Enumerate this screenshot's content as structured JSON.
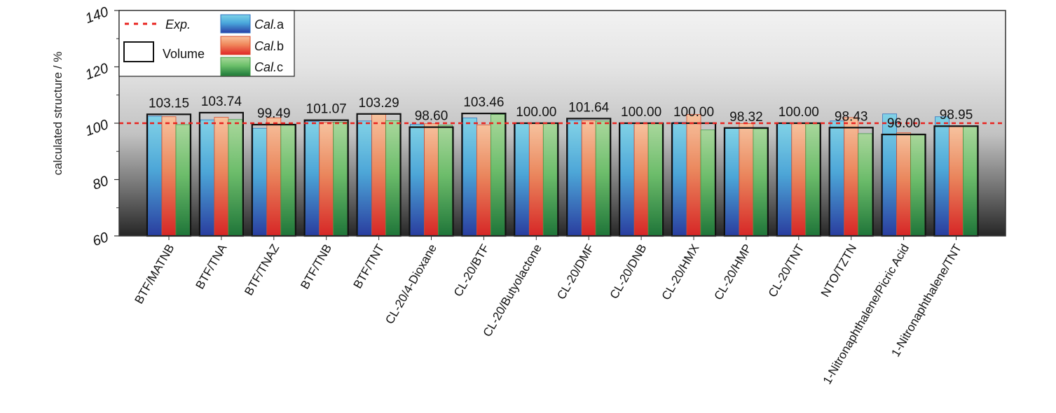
{
  "chart_data": {
    "type": "bar",
    "ylabel": "calculated structure / %",
    "ylim": [
      60,
      140
    ],
    "yticks": [
      60,
      80,
      100,
      120,
      140
    ],
    "reference_line": {
      "value": 100,
      "label": "Exp.",
      "color": "#e8231f"
    },
    "categories": [
      "BTF/MATNB",
      "BTF/TNA",
      "BTF/TNAZ",
      "BTF/TNB",
      "BTF/TNT",
      "CL-20/4-Dioxane",
      "CL-20/BTF",
      "CL-20/Butyolactone",
      "CL-20/DMF",
      "CL-20/DNB",
      "CL-20/HMX",
      "CL-20/HMP",
      "CL-20/TNT",
      "NTO/TZTN",
      "1-Nitronaphthalene/Picric Acid",
      "1-Nitronaphthalene/TNT"
    ],
    "volume": {
      "name": "Volume",
      "values": [
        103.15,
        103.74,
        99.49,
        101.07,
        103.29,
        98.6,
        103.46,
        100.0,
        101.64,
        100.0,
        100.0,
        98.32,
        100.0,
        98.43,
        96.0,
        98.95
      ],
      "labels": [
        "103.15",
        "103.74",
        "99.49",
        "101.07",
        "103.29",
        "98.60",
        "103.46",
        "100.00",
        "101.64",
        "100.00",
        "100.00",
        "98.32",
        "100.00",
        "98.43",
        "96.00",
        "98.95"
      ]
    },
    "series": [
      {
        "name_prefix": "Cal.",
        "name_suffix": "a",
        "color": "#2b8fd0",
        "values": [
          102.5,
          101.2,
          98.2,
          100.6,
          100.8,
          99.6,
          101.9,
          100.0,
          101.0,
          100.0,
          100.3,
          98.1,
          100.0,
          100.8,
          103.3,
          102.3
        ]
      },
      {
        "name_prefix": "Cal.",
        "name_suffix": "b",
        "color": "#f0623f",
        "values": [
          102.3,
          102.1,
          101.9,
          100.3,
          103.2,
          99.8,
          99.4,
          100.0,
          100.9,
          100.0,
          103.1,
          99.9,
          100.0,
          102.0,
          96.6,
          98.8
        ]
      },
      {
        "name_prefix": "Cal.",
        "name_suffix": "c",
        "color": "#55b04c",
        "values": [
          99.5,
          101.3,
          99.5,
          100.4,
          100.9,
          99.3,
          103.1,
          100.1,
          100.8,
          100.0,
          97.6,
          98.0,
          100.0,
          96.3,
          96.2,
          99.0
        ]
      }
    ],
    "legend": {
      "placement": "top-left",
      "volume_label": "Volume"
    },
    "grid": false
  }
}
